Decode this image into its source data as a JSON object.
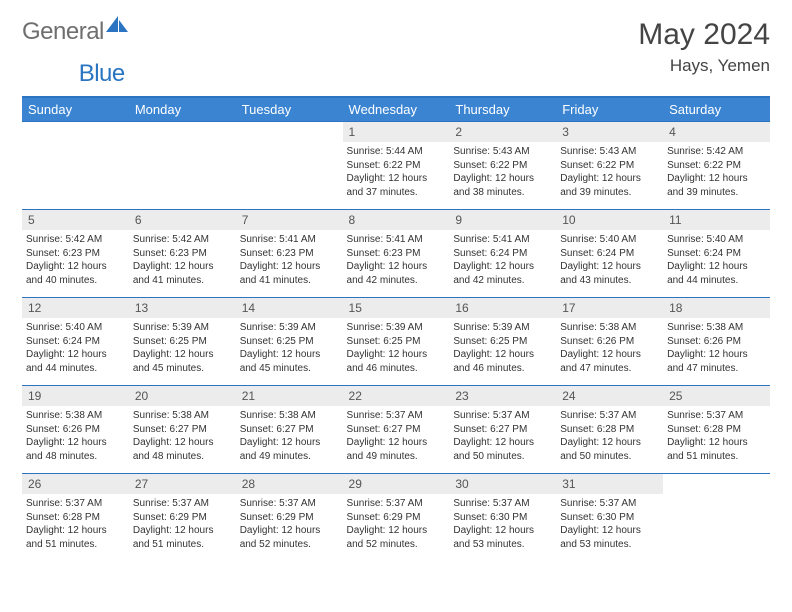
{
  "brand": {
    "part1": "General",
    "part2": "Blue"
  },
  "title": {
    "month": "May 2024",
    "location": "Hays, Yemen"
  },
  "colors": {
    "header_bg": "#3a84d2",
    "header_border": "#2a74c2",
    "daynum_bg": "#ececec",
    "text": "#333333",
    "brand_grey": "#6f6f6f",
    "brand_blue": "#2a74c2"
  },
  "weekdays": [
    "Sunday",
    "Monday",
    "Tuesday",
    "Wednesday",
    "Thursday",
    "Friday",
    "Saturday"
  ],
  "weeks": [
    [
      {
        "day": "",
        "sunrise": "",
        "sunset": "",
        "daylight": ""
      },
      {
        "day": "",
        "sunrise": "",
        "sunset": "",
        "daylight": ""
      },
      {
        "day": "",
        "sunrise": "",
        "sunset": "",
        "daylight": ""
      },
      {
        "day": "1",
        "sunrise": "Sunrise: 5:44 AM",
        "sunset": "Sunset: 6:22 PM",
        "daylight": "Daylight: 12 hours and 37 minutes."
      },
      {
        "day": "2",
        "sunrise": "Sunrise: 5:43 AM",
        "sunset": "Sunset: 6:22 PM",
        "daylight": "Daylight: 12 hours and 38 minutes."
      },
      {
        "day": "3",
        "sunrise": "Sunrise: 5:43 AM",
        "sunset": "Sunset: 6:22 PM",
        "daylight": "Daylight: 12 hours and 39 minutes."
      },
      {
        "day": "4",
        "sunrise": "Sunrise: 5:42 AM",
        "sunset": "Sunset: 6:22 PM",
        "daylight": "Daylight: 12 hours and 39 minutes."
      }
    ],
    [
      {
        "day": "5",
        "sunrise": "Sunrise: 5:42 AM",
        "sunset": "Sunset: 6:23 PM",
        "daylight": "Daylight: 12 hours and 40 minutes."
      },
      {
        "day": "6",
        "sunrise": "Sunrise: 5:42 AM",
        "sunset": "Sunset: 6:23 PM",
        "daylight": "Daylight: 12 hours and 41 minutes."
      },
      {
        "day": "7",
        "sunrise": "Sunrise: 5:41 AM",
        "sunset": "Sunset: 6:23 PM",
        "daylight": "Daylight: 12 hours and 41 minutes."
      },
      {
        "day": "8",
        "sunrise": "Sunrise: 5:41 AM",
        "sunset": "Sunset: 6:23 PM",
        "daylight": "Daylight: 12 hours and 42 minutes."
      },
      {
        "day": "9",
        "sunrise": "Sunrise: 5:41 AM",
        "sunset": "Sunset: 6:24 PM",
        "daylight": "Daylight: 12 hours and 42 minutes."
      },
      {
        "day": "10",
        "sunrise": "Sunrise: 5:40 AM",
        "sunset": "Sunset: 6:24 PM",
        "daylight": "Daylight: 12 hours and 43 minutes."
      },
      {
        "day": "11",
        "sunrise": "Sunrise: 5:40 AM",
        "sunset": "Sunset: 6:24 PM",
        "daylight": "Daylight: 12 hours and 44 minutes."
      }
    ],
    [
      {
        "day": "12",
        "sunrise": "Sunrise: 5:40 AM",
        "sunset": "Sunset: 6:24 PM",
        "daylight": "Daylight: 12 hours and 44 minutes."
      },
      {
        "day": "13",
        "sunrise": "Sunrise: 5:39 AM",
        "sunset": "Sunset: 6:25 PM",
        "daylight": "Daylight: 12 hours and 45 minutes."
      },
      {
        "day": "14",
        "sunrise": "Sunrise: 5:39 AM",
        "sunset": "Sunset: 6:25 PM",
        "daylight": "Daylight: 12 hours and 45 minutes."
      },
      {
        "day": "15",
        "sunrise": "Sunrise: 5:39 AM",
        "sunset": "Sunset: 6:25 PM",
        "daylight": "Daylight: 12 hours and 46 minutes."
      },
      {
        "day": "16",
        "sunrise": "Sunrise: 5:39 AM",
        "sunset": "Sunset: 6:25 PM",
        "daylight": "Daylight: 12 hours and 46 minutes."
      },
      {
        "day": "17",
        "sunrise": "Sunrise: 5:38 AM",
        "sunset": "Sunset: 6:26 PM",
        "daylight": "Daylight: 12 hours and 47 minutes."
      },
      {
        "day": "18",
        "sunrise": "Sunrise: 5:38 AM",
        "sunset": "Sunset: 6:26 PM",
        "daylight": "Daylight: 12 hours and 47 minutes."
      }
    ],
    [
      {
        "day": "19",
        "sunrise": "Sunrise: 5:38 AM",
        "sunset": "Sunset: 6:26 PM",
        "daylight": "Daylight: 12 hours and 48 minutes."
      },
      {
        "day": "20",
        "sunrise": "Sunrise: 5:38 AM",
        "sunset": "Sunset: 6:27 PM",
        "daylight": "Daylight: 12 hours and 48 minutes."
      },
      {
        "day": "21",
        "sunrise": "Sunrise: 5:38 AM",
        "sunset": "Sunset: 6:27 PM",
        "daylight": "Daylight: 12 hours and 49 minutes."
      },
      {
        "day": "22",
        "sunrise": "Sunrise: 5:37 AM",
        "sunset": "Sunset: 6:27 PM",
        "daylight": "Daylight: 12 hours and 49 minutes."
      },
      {
        "day": "23",
        "sunrise": "Sunrise: 5:37 AM",
        "sunset": "Sunset: 6:27 PM",
        "daylight": "Daylight: 12 hours and 50 minutes."
      },
      {
        "day": "24",
        "sunrise": "Sunrise: 5:37 AM",
        "sunset": "Sunset: 6:28 PM",
        "daylight": "Daylight: 12 hours and 50 minutes."
      },
      {
        "day": "25",
        "sunrise": "Sunrise: 5:37 AM",
        "sunset": "Sunset: 6:28 PM",
        "daylight": "Daylight: 12 hours and 51 minutes."
      }
    ],
    [
      {
        "day": "26",
        "sunrise": "Sunrise: 5:37 AM",
        "sunset": "Sunset: 6:28 PM",
        "daylight": "Daylight: 12 hours and 51 minutes."
      },
      {
        "day": "27",
        "sunrise": "Sunrise: 5:37 AM",
        "sunset": "Sunset: 6:29 PM",
        "daylight": "Daylight: 12 hours and 51 minutes."
      },
      {
        "day": "28",
        "sunrise": "Sunrise: 5:37 AM",
        "sunset": "Sunset: 6:29 PM",
        "daylight": "Daylight: 12 hours and 52 minutes."
      },
      {
        "day": "29",
        "sunrise": "Sunrise: 5:37 AM",
        "sunset": "Sunset: 6:29 PM",
        "daylight": "Daylight: 12 hours and 52 minutes."
      },
      {
        "day": "30",
        "sunrise": "Sunrise: 5:37 AM",
        "sunset": "Sunset: 6:30 PM",
        "daylight": "Daylight: 12 hours and 53 minutes."
      },
      {
        "day": "31",
        "sunrise": "Sunrise: 5:37 AM",
        "sunset": "Sunset: 6:30 PM",
        "daylight": "Daylight: 12 hours and 53 minutes."
      },
      {
        "day": "",
        "sunrise": "",
        "sunset": "",
        "daylight": ""
      }
    ]
  ]
}
